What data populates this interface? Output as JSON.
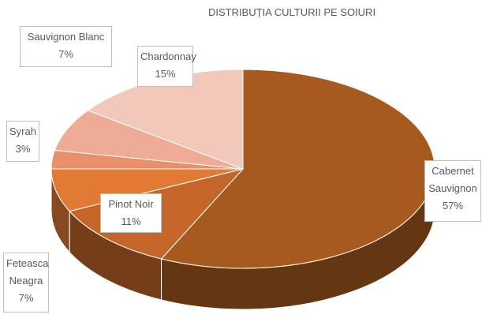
{
  "chart_data": {
    "type": "pie",
    "title": "DISTRIBUȚIA CULTURII PE SOIURI",
    "categories": [
      "Cabernet Sauvignon",
      "Pinot Noir",
      "Feteasca Neagra",
      "Syrah",
      "Sauvignon Blanc",
      "Chardonnay"
    ],
    "values": [
      57,
      11,
      7,
      3,
      7,
      15
    ],
    "value_labels": [
      "57%",
      "11%",
      "7%",
      "3%",
      "7%",
      "15%"
    ],
    "colors": [
      "#a65a1e",
      "#c4662a",
      "#e07a35",
      "#e8906a",
      "#eeab95",
      "#f2c8bb"
    ]
  }
}
